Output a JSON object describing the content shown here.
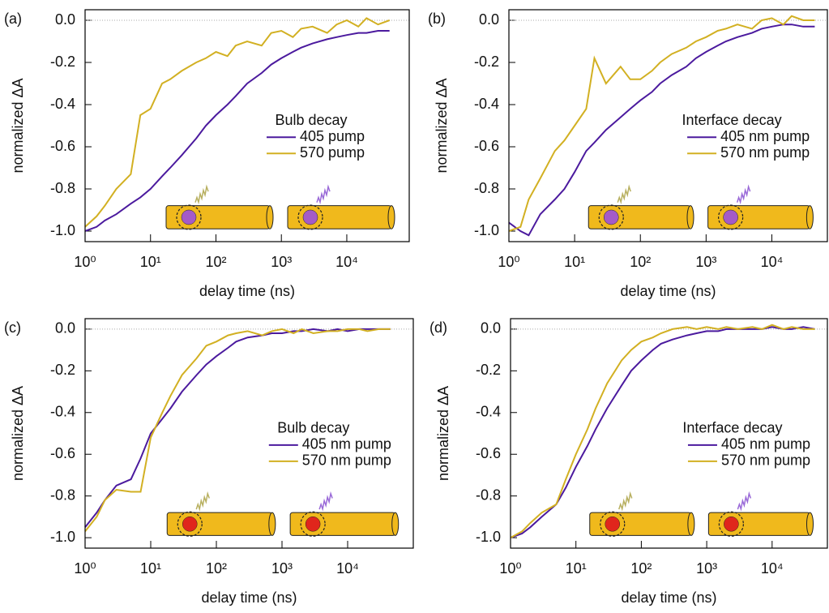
{
  "chart_data": [
    {
      "type": "line",
      "panel_label": "(a)",
      "ylabel": "normalized ΔA",
      "xlabel": "delay time (ns)",
      "legend_title": "Bulb decay",
      "legend_loc": "center right",
      "xscale": "log",
      "xlim": [
        1,
        90000
      ],
      "ylim": [
        -1.05,
        0.05
      ],
      "xticks": [
        {
          "value": 1,
          "label": "10⁰"
        },
        {
          "value": 10,
          "label": "10¹"
        },
        {
          "value": 100,
          "label": "10²"
        },
        {
          "value": 1000,
          "label": "10³"
        },
        {
          "value": 10000,
          "label": "10⁴"
        }
      ],
      "yticks": [
        {
          "value": -1,
          "label": "-1.0"
        },
        -0.8,
        -0.6,
        -0.4,
        -0.2,
        {
          "value": 0,
          "label": "0.0"
        }
      ],
      "x": [
        1,
        1.5,
        2,
        3,
        5,
        7,
        10,
        15,
        20,
        30,
        50,
        70,
        100,
        150,
        200,
        300,
        500,
        700,
        1000,
        1500,
        2000,
        3000,
        5000,
        7000,
        10000,
        15000,
        20000,
        30000,
        45000
      ],
      "series": [
        {
          "name": "405 pump",
          "color": "#4b1a9e",
          "values": [
            -1.0,
            -0.98,
            -0.95,
            -0.92,
            -0.87,
            -0.84,
            -0.8,
            -0.74,
            -0.7,
            -0.64,
            -0.56,
            -0.5,
            -0.45,
            -0.4,
            -0.36,
            -0.3,
            -0.25,
            -0.21,
            -0.18,
            -0.15,
            -0.13,
            -0.11,
            -0.09,
            -0.08,
            -0.07,
            -0.06,
            -0.06,
            -0.05,
            -0.05
          ]
        },
        {
          "name": "570 pump",
          "color": "#d2b022",
          "values": [
            -0.98,
            -0.93,
            -0.88,
            -0.8,
            -0.73,
            -0.45,
            -0.42,
            -0.3,
            -0.28,
            -0.24,
            -0.2,
            -0.18,
            -0.15,
            -0.17,
            -0.12,
            -0.1,
            -0.12,
            -0.06,
            -0.05,
            -0.08,
            -0.04,
            -0.03,
            -0.06,
            -0.02,
            0.0,
            -0.03,
            0.01,
            -0.02,
            0.0
          ]
        }
      ]
    },
    {
      "type": "line",
      "panel_label": "(b)",
      "ylabel": "normalized ΔA",
      "xlabel": "delay time (ns)",
      "legend_title": "Interface decay",
      "legend_loc": "center right",
      "xscale": "log",
      "xlim": [
        1,
        70000
      ],
      "ylim": [
        -1.05,
        0.05
      ],
      "xticks": [
        {
          "value": 1,
          "label": "10⁰"
        },
        {
          "value": 10,
          "label": "10¹"
        },
        {
          "value": 100,
          "label": "10²"
        },
        {
          "value": 1000,
          "label": "10³"
        },
        {
          "value": 10000,
          "label": "10⁴"
        }
      ],
      "yticks": [
        {
          "value": -1,
          "label": "-1.0"
        },
        -0.8,
        -0.6,
        -0.4,
        -0.2,
        {
          "value": 0,
          "label": "0.0"
        }
      ],
      "x": [
        1,
        1.5,
        2,
        3,
        5,
        7,
        10,
        15,
        20,
        30,
        50,
        70,
        100,
        150,
        200,
        300,
        500,
        700,
        1000,
        1500,
        2000,
        3000,
        5000,
        7000,
        10000,
        15000,
        20000,
        30000,
        45000
      ],
      "series": [
        {
          "name": "405 nm pump",
          "color": "#4b1a9e",
          "values": [
            -0.96,
            -1.0,
            -1.02,
            -0.92,
            -0.85,
            -0.8,
            -0.72,
            -0.62,
            -0.58,
            -0.52,
            -0.46,
            -0.42,
            -0.38,
            -0.34,
            -0.3,
            -0.26,
            -0.22,
            -0.18,
            -0.15,
            -0.12,
            -0.1,
            -0.08,
            -0.06,
            -0.04,
            -0.03,
            -0.02,
            -0.02,
            -0.03,
            -0.03
          ]
        },
        {
          "name": "570 nm pump",
          "color": "#d2b022",
          "values": [
            -1.0,
            -0.98,
            -0.85,
            -0.75,
            -0.62,
            -0.57,
            -0.5,
            -0.42,
            -0.18,
            -0.3,
            -0.22,
            -0.28,
            -0.28,
            -0.24,
            -0.2,
            -0.16,
            -0.13,
            -0.1,
            -0.08,
            -0.05,
            -0.04,
            -0.02,
            -0.04,
            0.0,
            0.01,
            -0.02,
            0.02,
            0.0,
            0.0
          ]
        }
      ]
    },
    {
      "type": "line",
      "panel_label": "(c)",
      "ylabel": "normalized ΔA",
      "xlabel": "delay time (ns)",
      "legend_title": "Bulb decay",
      "legend_loc": "center right",
      "xscale": "log",
      "xlim": [
        1,
        100000
      ],
      "ylim": [
        -1.05,
        0.05
      ],
      "xticks": [
        {
          "value": 1,
          "label": "10⁰"
        },
        {
          "value": 10,
          "label": "10¹"
        },
        {
          "value": 100,
          "label": "10²"
        },
        {
          "value": 1000,
          "label": "10³"
        },
        {
          "value": 10000,
          "label": "10⁴"
        }
      ],
      "yticks": [
        {
          "value": -1,
          "label": "-1.0"
        },
        -0.8,
        -0.6,
        -0.4,
        -0.2,
        {
          "value": 0,
          "label": "0.0"
        }
      ],
      "x": [
        1,
        1.5,
        2,
        3,
        5,
        7,
        10,
        15,
        20,
        30,
        50,
        70,
        100,
        150,
        200,
        300,
        500,
        700,
        1000,
        1500,
        2000,
        3000,
        5000,
        7000,
        10000,
        15000,
        20000,
        30000,
        45000
      ],
      "series": [
        {
          "name": "405 nm pump",
          "color": "#4b1a9e",
          "values": [
            -0.95,
            -0.88,
            -0.82,
            -0.75,
            -0.72,
            -0.62,
            -0.5,
            -0.43,
            -0.38,
            -0.3,
            -0.22,
            -0.17,
            -0.13,
            -0.09,
            -0.06,
            -0.04,
            -0.03,
            -0.02,
            -0.02,
            -0.01,
            -0.01,
            0.0,
            -0.01,
            0.0,
            -0.01,
            0.0,
            0.0,
            0.0,
            0.0
          ]
        },
        {
          "name": "570 nm pump",
          "color": "#d2b022",
          "values": [
            -0.97,
            -0.9,
            -0.82,
            -0.77,
            -0.78,
            -0.78,
            -0.52,
            -0.4,
            -0.32,
            -0.22,
            -0.14,
            -0.08,
            -0.06,
            -0.03,
            -0.02,
            -0.01,
            -0.03,
            -0.01,
            0.0,
            -0.02,
            0.0,
            -0.02,
            -0.01,
            -0.01,
            0.0,
            0.0,
            -0.01,
            0.0,
            0.0
          ]
        }
      ]
    },
    {
      "type": "line",
      "panel_label": "(d)",
      "ylabel": "normalized ΔA",
      "xlabel": "delay time (ns)",
      "legend_title": "Interface decay",
      "legend_loc": "center right",
      "xscale": "log",
      "xlim": [
        1,
        70000
      ],
      "ylim": [
        -1.05,
        0.05
      ],
      "xticks": [
        {
          "value": 1,
          "label": "10⁰"
        },
        {
          "value": 10,
          "label": "10¹"
        },
        {
          "value": 100,
          "label": "10²"
        },
        {
          "value": 1000,
          "label": "10³"
        },
        {
          "value": 10000,
          "label": "10⁴"
        }
      ],
      "yticks": [
        {
          "value": -1,
          "label": "-1.0"
        },
        -0.8,
        -0.6,
        -0.4,
        -0.2,
        {
          "value": 0,
          "label": "0.0"
        }
      ],
      "x": [
        1,
        1.5,
        2,
        3,
        5,
        7,
        10,
        15,
        20,
        30,
        50,
        70,
        100,
        150,
        200,
        300,
        500,
        700,
        1000,
        1500,
        2000,
        3000,
        5000,
        7000,
        10000,
        15000,
        20000,
        30000,
        45000
      ],
      "series": [
        {
          "name": "405 nm pump",
          "color": "#4b1a9e",
          "values": [
            -1.0,
            -0.98,
            -0.95,
            -0.9,
            -0.84,
            -0.76,
            -0.66,
            -0.56,
            -0.48,
            -0.38,
            -0.27,
            -0.2,
            -0.15,
            -0.1,
            -0.07,
            -0.05,
            -0.03,
            -0.02,
            -0.01,
            -0.01,
            0.0,
            0.0,
            0.0,
            0.0,
            0.01,
            0.0,
            0.0,
            0.01,
            0.0
          ]
        },
        {
          "name": "570 nm pump",
          "color": "#d2b022",
          "values": [
            -1.0,
            -0.97,
            -0.93,
            -0.88,
            -0.84,
            -0.72,
            -0.6,
            -0.48,
            -0.38,
            -0.26,
            -0.15,
            -0.1,
            -0.06,
            -0.04,
            -0.02,
            0.0,
            0.01,
            0.0,
            0.01,
            0.0,
            0.01,
            0.0,
            0.01,
            0.0,
            0.02,
            0.0,
            0.01,
            0.0,
            0.0
          ]
        }
      ]
    }
  ]
}
